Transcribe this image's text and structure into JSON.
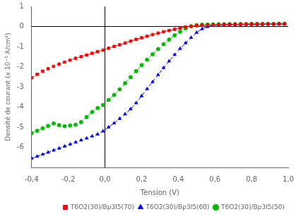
{
  "chart_data": {
    "type": "line",
    "xlabel": "Tension (V)",
    "ylabel": "Densité de courant (x 10⁻⁵ A/cm²)",
    "xlim": [
      -0.4,
      1.0
    ],
    "ylim": [
      -7,
      1
    ],
    "xticks": [
      {
        "value": -0.4,
        "label": "-0,4"
      },
      {
        "value": -0.2,
        "label": "-0,2"
      },
      {
        "value": 0.0,
        "label": "0,0"
      },
      {
        "value": 0.2,
        "label": "0,2"
      },
      {
        "value": 0.4,
        "label": "0,4"
      },
      {
        "value": 0.6,
        "label": "0,6"
      },
      {
        "value": 0.8,
        "label": "0,8"
      },
      {
        "value": 1.0,
        "label": "1,0"
      }
    ],
    "yticks": [
      -6,
      -5,
      -4,
      -3,
      -2,
      -1,
      0,
      1
    ],
    "grid": false,
    "legend": "lower right",
    "series": [
      {
        "name": "T6O2(30)/Bp3I5(70)",
        "color": "#ff0000",
        "marker": "square",
        "line_style": "dashed",
        "x": [
          -0.4,
          -0.37,
          -0.34,
          -0.31,
          -0.28,
          -0.25,
          -0.22,
          -0.19,
          -0.16,
          -0.13,
          -0.1,
          -0.07,
          -0.04,
          -0.01,
          0.02,
          0.05,
          0.08,
          0.11,
          0.14,
          0.17,
          0.2,
          0.23,
          0.26,
          0.29,
          0.32,
          0.35,
          0.38,
          0.41,
          0.44,
          0.47,
          0.5,
          0.53,
          0.56,
          0.59,
          0.62,
          0.65,
          0.68,
          0.71,
          0.74,
          0.77,
          0.8,
          0.83,
          0.86,
          0.89,
          0.92,
          0.95,
          0.98
        ],
        "values": [
          -2.55,
          -2.38,
          -2.22,
          -2.1,
          -1.98,
          -1.87,
          -1.77,
          -1.67,
          -1.58,
          -1.5,
          -1.42,
          -1.33,
          -1.25,
          -1.17,
          -1.08,
          -0.99,
          -0.91,
          -0.82,
          -0.73,
          -0.64,
          -0.56,
          -0.48,
          -0.4,
          -0.33,
          -0.26,
          -0.2,
          -0.14,
          -0.08,
          -0.03,
          0.01,
          0.04,
          0.06,
          0.07,
          0.08,
          0.09,
          0.09,
          0.1,
          0.1,
          0.1,
          0.11,
          0.11,
          0.11,
          0.11,
          0.12,
          0.12,
          0.12,
          0.12
        ]
      },
      {
        "name": "T6O2(30)/Bp3I5(60)",
        "color": "#0000ff",
        "marker": "triangle",
        "line_style": "dashed",
        "x": [
          -0.4,
          -0.37,
          -0.34,
          -0.31,
          -0.28,
          -0.25,
          -0.22,
          -0.19,
          -0.16,
          -0.13,
          -0.1,
          -0.07,
          -0.04,
          -0.01,
          0.02,
          0.05,
          0.08,
          0.11,
          0.14,
          0.17,
          0.2,
          0.23,
          0.26,
          0.29,
          0.32,
          0.35,
          0.38,
          0.41,
          0.44,
          0.47,
          0.5,
          0.53,
          0.56,
          0.59,
          0.62,
          0.65,
          0.68,
          0.71,
          0.74,
          0.77,
          0.8,
          0.83,
          0.86,
          0.89,
          0.92,
          0.95,
          0.98
        ],
        "values": [
          -6.55,
          -6.45,
          -6.35,
          -6.25,
          -6.15,
          -6.05,
          -5.95,
          -5.85,
          -5.75,
          -5.65,
          -5.55,
          -5.45,
          -5.35,
          -5.2,
          -5.0,
          -4.8,
          -4.58,
          -4.35,
          -4.1,
          -3.8,
          -3.45,
          -3.1,
          -2.75,
          -2.4,
          -2.05,
          -1.72,
          -1.4,
          -1.1,
          -0.82,
          -0.55,
          -0.3,
          -0.12,
          -0.01,
          0.05,
          0.08,
          0.09,
          0.1,
          0.1,
          0.11,
          0.11,
          0.11,
          0.11,
          0.12,
          0.12,
          0.12,
          0.12,
          0.12
        ]
      },
      {
        "name": "T6O2(30)/Bp3I5(50)",
        "color": "#00bb00",
        "marker": "circle",
        "line_style": "dashed",
        "x": [
          -0.4,
          -0.37,
          -0.34,
          -0.31,
          -0.28,
          -0.25,
          -0.22,
          -0.19,
          -0.16,
          -0.13,
          -0.1,
          -0.07,
          -0.04,
          -0.01,
          0.02,
          0.05,
          0.08,
          0.11,
          0.14,
          0.17,
          0.2,
          0.23,
          0.26,
          0.29,
          0.32,
          0.35,
          0.38,
          0.41,
          0.44,
          0.47,
          0.5,
          0.53,
          0.56,
          0.59,
          0.62,
          0.65,
          0.68,
          0.71,
          0.74,
          0.77,
          0.8,
          0.83,
          0.86,
          0.89,
          0.92,
          0.95,
          0.98
        ],
        "values": [
          -5.3,
          -5.18,
          -5.06,
          -4.94,
          -4.82,
          -4.9,
          -4.95,
          -4.92,
          -4.88,
          -4.75,
          -4.5,
          -4.25,
          -4.05,
          -3.9,
          -3.65,
          -3.4,
          -3.12,
          -2.82,
          -2.52,
          -2.22,
          -1.92,
          -1.65,
          -1.38,
          -1.12,
          -0.88,
          -0.65,
          -0.44,
          -0.26,
          -0.1,
          0.01,
          0.07,
          0.09,
          0.1,
          0.11,
          0.11,
          0.11,
          0.12,
          0.12,
          0.12,
          0.12,
          0.13,
          0.13,
          0.13,
          0.13,
          0.13,
          0.14,
          0.14
        ]
      }
    ]
  }
}
